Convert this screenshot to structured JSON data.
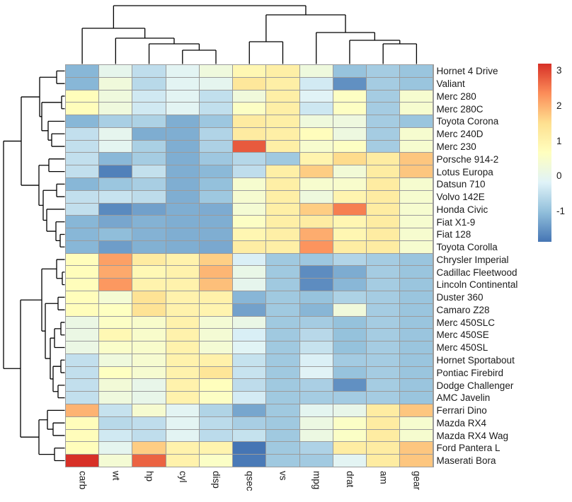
{
  "figure": {
    "background": "#FFFFFF",
    "grid_line_color": "#9B9B9B",
    "dendrogram_color": "#000000",
    "label_color": "#1A1A1A"
  },
  "chart_data": {
    "type": "heatmap",
    "title": "",
    "scaling": "column-zscore",
    "columns": [
      "carb",
      "wt",
      "hp",
      "cyl",
      "disp",
      "qsec",
      "vs",
      "mpg",
      "drat",
      "am",
      "gear"
    ],
    "rows": [
      "Hornet 4 Drive",
      "Valiant",
      "Merc 280",
      "Merc 280C",
      "Toyota Corona",
      "Merc 240D",
      "Merc 230",
      "Porsche 914-2",
      "Lotus Europa",
      "Datsun 710",
      "Volvo 142E",
      "Honda Civic",
      "Fiat X1-9",
      "Fiat 128",
      "Toyota Corolla",
      "Chrysler Imperial",
      "Cadillac Fleetwood",
      "Lincoln Continental",
      "Duster 360",
      "Camaro Z28",
      "Merc 450SLC",
      "Merc 450SE",
      "Merc 450SL",
      "Hornet Sportabout",
      "Pontiac Firebird",
      "Dodge Challenger",
      "AMC Javelin",
      "Ferrari Dino",
      "Mazda RX4",
      "Mazda RX4 Wag",
      "Ford Pantera L",
      "Maserati Bora"
    ],
    "values": [
      [
        1,
        3.215,
        110,
        6,
        258,
        19.44,
        1,
        21.4,
        3.08,
        0,
        3
      ],
      [
        1,
        3.46,
        105,
        6,
        225,
        20.22,
        1,
        18.1,
        2.76,
        0,
        3
      ],
      [
        4,
        3.44,
        123,
        6,
        167.6,
        18.3,
        1,
        19.2,
        3.92,
        0,
        4
      ],
      [
        4,
        3.44,
        123,
        6,
        167.6,
        18.9,
        1,
        17.8,
        3.92,
        0,
        4
      ],
      [
        1,
        2.465,
        97,
        4,
        120.1,
        20.01,
        1,
        21.5,
        3.7,
        0,
        3
      ],
      [
        2,
        3.19,
        62,
        4,
        146.7,
        20.0,
        1,
        24.4,
        3.69,
        0,
        4
      ],
      [
        2,
        3.15,
        95,
        4,
        140.8,
        22.9,
        1,
        22.8,
        3.92,
        0,
        4
      ],
      [
        2,
        2.14,
        91,
        4,
        120.3,
        16.7,
        0,
        26.0,
        4.43,
        1,
        5
      ],
      [
        2,
        1.513,
        113,
        4,
        95.1,
        16.9,
        1,
        30.4,
        3.77,
        1,
        5
      ],
      [
        1,
        2.32,
        93,
        4,
        108,
        18.61,
        1,
        22.8,
        3.85,
        1,
        4
      ],
      [
        2,
        2.78,
        109,
        4,
        121,
        18.6,
        1,
        21.4,
        4.11,
        1,
        4
      ],
      [
        2,
        1.615,
        52,
        4,
        75.7,
        18.52,
        1,
        30.4,
        4.93,
        1,
        4
      ],
      [
        1,
        1.935,
        66,
        4,
        79,
        18.9,
        1,
        27.3,
        4.08,
        1,
        4
      ],
      [
        1,
        2.2,
        66,
        4,
        78.7,
        19.47,
        1,
        32.4,
        4.08,
        1,
        4
      ],
      [
        1,
        1.835,
        65,
        4,
        71.1,
        19.9,
        1,
        33.9,
        4.22,
        1,
        4
      ],
      [
        4,
        5.345,
        230,
        8,
        440,
        17.42,
        0,
        14.7,
        3.23,
        0,
        3
      ],
      [
        4,
        5.25,
        205,
        8,
        472,
        17.98,
        0,
        10.4,
        2.93,
        0,
        3
      ],
      [
        4,
        5.424,
        215,
        8,
        460,
        17.82,
        0,
        10.4,
        3.0,
        0,
        3
      ],
      [
        4,
        3.57,
        245,
        8,
        360,
        15.84,
        0,
        14.3,
        3.21,
        0,
        3
      ],
      [
        4,
        3.84,
        245,
        8,
        350,
        15.41,
        0,
        13.3,
        3.73,
        0,
        3
      ],
      [
        3,
        3.78,
        180,
        8,
        275.8,
        18.0,
        0,
        15.2,
        3.07,
        0,
        3
      ],
      [
        3,
        4.07,
        180,
        8,
        275.8,
        17.4,
        0,
        16.4,
        3.07,
        0,
        3
      ],
      [
        3,
        3.73,
        180,
        8,
        275.8,
        17.6,
        0,
        17.3,
        3.07,
        0,
        3
      ],
      [
        2,
        3.44,
        175,
        8,
        360,
        17.02,
        0,
        18.7,
        3.15,
        0,
        3
      ],
      [
        2,
        3.845,
        175,
        8,
        400,
        17.05,
        0,
        19.2,
        3.08,
        0,
        3
      ],
      [
        2,
        3.52,
        150,
        8,
        318,
        16.87,
        0,
        15.5,
        2.76,
        0,
        3
      ],
      [
        2,
        3.435,
        150,
        8,
        304,
        17.3,
        0,
        15.2,
        3.15,
        0,
        3
      ],
      [
        6,
        2.77,
        175,
        6,
        145,
        15.5,
        0,
        19.7,
        3.62,
        1,
        5
      ],
      [
        4,
        2.62,
        110,
        6,
        160,
        16.46,
        0,
        21.0,
        3.9,
        1,
        4
      ],
      [
        4,
        2.875,
        110,
        6,
        160,
        17.02,
        0,
        21.0,
        3.9,
        1,
        4
      ],
      [
        4,
        3.17,
        264,
        8,
        351,
        14.5,
        0,
        15.8,
        4.22,
        1,
        5
      ],
      [
        8,
        3.57,
        335,
        8,
        301,
        14.6,
        0,
        15.0,
        3.54,
        1,
        5
      ]
    ],
    "colormap": [
      "#4575B4",
      "#91BFDB",
      "#E0F3F8",
      "#FFFFBF",
      "#FEE090",
      "#FC8D59",
      "#D73027"
    ],
    "legend_ticks": [
      3,
      2,
      1,
      0,
      -1
    ],
    "row_dendrogram": {
      "d": 86.5,
      "c": [
        {
          "d": 61.5,
          "c": [
            {
              "d": 35.5,
              "c": [
                {
                  "d": 11.5,
                  "c": [
                    0,
                    1
                  ]
                },
                {
                  "d": 32.5,
                  "c": [
                    {
                      "d": 4.5,
                      "c": [
                        2,
                        3
                      ]
                    },
                    {
                      "d": 23.5,
                      "c": [
                        4,
                        {
                          "d": 18.5,
                          "c": [
                            5,
                            6
                          ]
                        }
                      ]
                    }
                  ]
                }
              ]
            },
            {
              "d": 36.5,
              "c": [
                {
                  "d": 22.5,
                  "c": [
                    7,
                    8
                  ]
                },
                {
                  "d": 30.5,
                  "c": [
                    {
                      "d": 11.5,
                      "c": [
                        9,
                        10
                      ]
                    },
                    {
                      "d": 25.5,
                      "c": [
                        11,
                        {
                          "d": 12.5,
                          "c": [
                            12,
                            {
                              "d": 6.5,
                              "c": [
                                13,
                                14
                              ]
                            }
                          ]
                        }
                      ]
                    }
                  ]
                }
              ]
            }
          ]
        },
        {
          "d": 62.5,
          "c": [
            {
              "d": 32.5,
              "c": [
                {
                  "d": 11.5,
                  "c": [
                    15,
                    {
                      "d": 3.5,
                      "c": [
                        16,
                        17
                      ]
                    }
                  ]
                },
                {
                  "d": 27.5,
                  "c": [
                    {
                      "d": 9.5,
                      "c": [
                        18,
                        19
                      ]
                    },
                    {
                      "d": 20.5,
                      "c": [
                        {
                          "d": 14.5,
                          "c": [
                            {
                              "d": 5.5,
                              "c": [
                                20,
                                21
                              ]
                            },
                            22
                          ]
                        },
                        {
                          "d": 16.5,
                          "c": [
                            {
                              "d": 5.5,
                              "c": [
                                23,
                                24
                              ]
                            },
                            {
                              "d": 9.5,
                              "c": [
                                25,
                                26
                              ]
                            }
                          ]
                        }
                      ]
                    }
                  ]
                }
              ]
            },
            {
              "d": 36.5,
              "c": [
                {
                  "d": 24.5,
                  "c": [
                    27,
                    {
                      "d": 16.5,
                      "c": [
                        28,
                        29
                      ]
                    }
                  ]
                },
                {
                  "d": 14.5,
                  "c": [
                    30,
                    31
                  ]
                }
              ]
            }
          ]
        }
      ]
    },
    "col_dendrogram": {
      "d": 82.5,
      "c": [
        {
          "d": 50.5,
          "c": [
            0,
            {
              "d": 36.5,
              "c": [
                1,
                {
                  "d": 28.5,
                  "c": [
                    2,
                    {
                      "d": 19.5,
                      "c": [
                        3,
                        4
                      ]
                    }
                  ]
                }
              ]
            }
          ]
        },
        {
          "d": 69.5,
          "c": [
            {
              "d": 31.5,
              "c": [
                5,
                6
              ]
            },
            {
              "d": 44.5,
              "c": [
                7,
                {
                  "d": 33.5,
                  "c": [
                    8,
                    {
                      "d": 28.5,
                      "c": [
                        9,
                        10
                      ]
                    }
                  ]
                }
              ]
            }
          ]
        }
      ]
    }
  }
}
